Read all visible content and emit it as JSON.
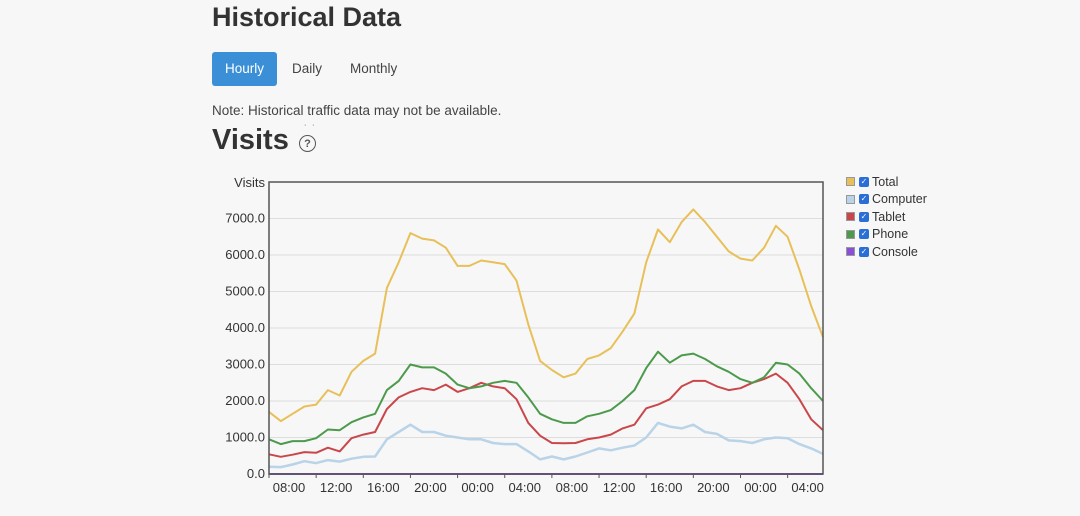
{
  "page": {
    "title": "Historical Data",
    "tabs": [
      {
        "label": "Hourly",
        "active": true
      },
      {
        "label": "Daily",
        "active": false
      },
      {
        "label": "Monthly",
        "active": false
      }
    ],
    "note": "Note: Historical traffic data may not be available.",
    "section_title": "Visits",
    "help_label": "?"
  },
  "colors": {
    "Total": "#e8c05a",
    "Computer": "#b9d3e8",
    "Tablet": "#c9474a",
    "Phone": "#4c9a4c",
    "Console": "#8a4fd8",
    "grid": "#dddddd",
    "axis": "#555555"
  },
  "chart_data": {
    "type": "line",
    "title": "Visits",
    "ylabel": "Visits",
    "xlabel": "",
    "ylim": [
      0,
      8000
    ],
    "yticks": [
      0,
      1000,
      2000,
      3000,
      4000,
      5000,
      6000,
      7000
    ],
    "ytick_labels": [
      "0.0",
      "1000.0",
      "2000.0",
      "3000.0",
      "4000.0",
      "5000.0",
      "6000.0",
      "7000.0"
    ],
    "x_hours_from_0800": [
      0,
      1,
      2,
      3,
      4,
      5,
      6,
      7,
      8,
      9,
      10,
      11,
      12,
      13,
      14,
      15,
      16,
      17,
      18,
      19,
      20,
      21,
      22,
      23,
      24,
      25,
      26,
      27,
      28,
      29,
      30,
      31,
      32,
      33,
      34,
      35,
      36,
      37,
      38,
      39,
      40,
      41,
      42,
      43,
      44,
      45,
      46,
      47
    ],
    "xtick_labels": [
      "08:00",
      "12:00",
      "16:00",
      "20:00",
      "00:00",
      "04:00",
      "08:00",
      "12:00",
      "16:00",
      "20:00",
      "00:00",
      "04:00"
    ],
    "xtick_positions": [
      0,
      4,
      8,
      12,
      16,
      20,
      24,
      28,
      32,
      36,
      40,
      44
    ],
    "legend": [
      "Total",
      "Computer",
      "Tablet",
      "Phone",
      "Console"
    ],
    "legend_placement": "right",
    "series": [
      {
        "name": "Total",
        "values": [
          1700,
          1450,
          1650,
          1850,
          1900,
          2300,
          2150,
          2800,
          3100,
          3300,
          5100,
          5800,
          6600,
          6450,
          6400,
          6200,
          5700,
          5700,
          5850,
          5800,
          5750,
          5300,
          4100,
          3100,
          2850,
          2650,
          2750,
          3150,
          3250,
          3450,
          3900,
          4400,
          5800,
          6700,
          6350,
          6900,
          7250,
          6900,
          6500,
          6100,
          5900,
          5850,
          6200,
          6800,
          6500,
          5600,
          4600,
          3750
        ]
      },
      {
        "name": "Computer",
        "values": [
          200,
          190,
          260,
          350,
          300,
          380,
          340,
          420,
          470,
          480,
          950,
          1150,
          1350,
          1150,
          1150,
          1050,
          1000,
          950,
          950,
          850,
          820,
          820,
          620,
          400,
          480,
          400,
          480,
          590,
          700,
          650,
          720,
          780,
          1000,
          1400,
          1300,
          1250,
          1350,
          1150,
          1100,
          920,
          900,
          850,
          950,
          1000,
          980,
          820,
          700,
          550
        ]
      },
      {
        "name": "Tablet",
        "values": [
          540,
          470,
          530,
          600,
          580,
          720,
          620,
          980,
          1080,
          1150,
          1780,
          2100,
          2250,
          2350,
          2300,
          2450,
          2250,
          2350,
          2500,
          2400,
          2350,
          2050,
          1400,
          1050,
          850,
          840,
          850,
          950,
          1000,
          1080,
          1250,
          1350,
          1800,
          1900,
          2050,
          2400,
          2550,
          2550,
          2400,
          2300,
          2350,
          2500,
          2600,
          2750,
          2500,
          2050,
          1500,
          1200
        ]
      },
      {
        "name": "Phone",
        "values": [
          950,
          820,
          900,
          900,
          980,
          1220,
          1200,
          1420,
          1550,
          1650,
          2300,
          2550,
          3000,
          2920,
          2920,
          2750,
          2450,
          2350,
          2400,
          2500,
          2550,
          2500,
          2100,
          1650,
          1500,
          1400,
          1400,
          1580,
          1650,
          1750,
          2000,
          2300,
          2900,
          3350,
          3050,
          3250,
          3300,
          3150,
          2950,
          2800,
          2600,
          2500,
          2650,
          3050,
          3000,
          2750,
          2350,
          2000
        ]
      },
      {
        "name": "Console",
        "values": [
          0,
          0,
          0,
          0,
          0,
          0,
          0,
          0,
          0,
          0,
          0,
          0,
          0,
          0,
          0,
          0,
          0,
          0,
          0,
          0,
          0,
          0,
          0,
          0,
          0,
          0,
          0,
          0,
          0,
          0,
          0,
          0,
          0,
          0,
          0,
          0,
          0,
          0,
          0,
          0,
          0,
          0,
          0,
          0,
          0,
          0,
          0,
          0
        ]
      }
    ]
  }
}
